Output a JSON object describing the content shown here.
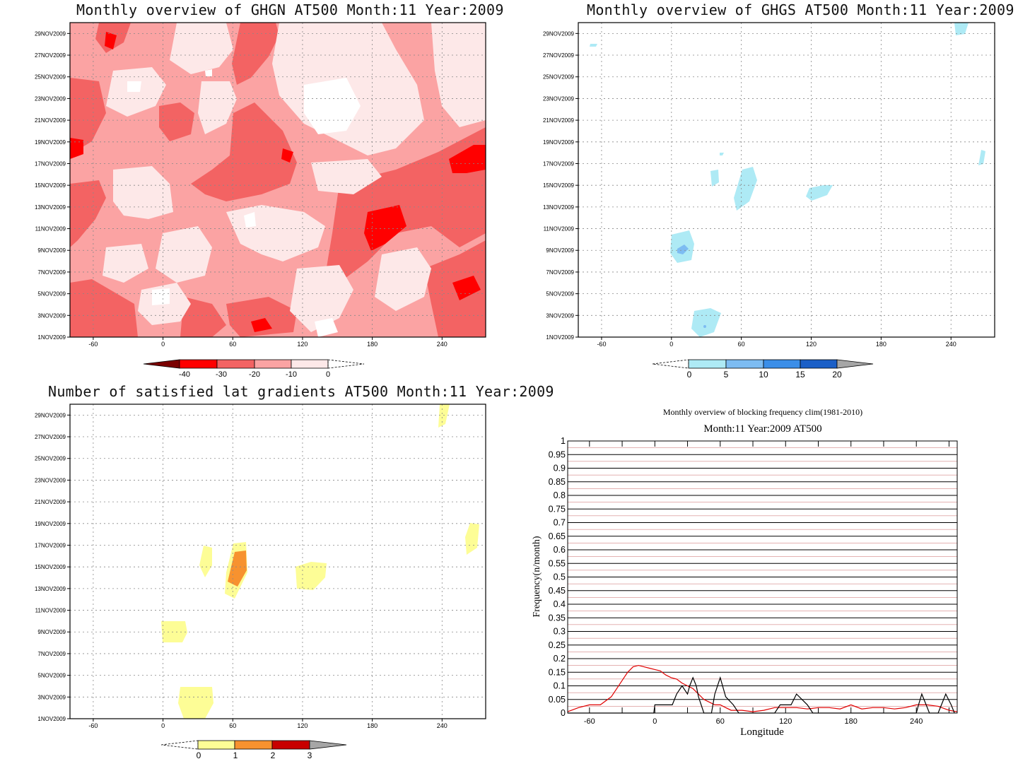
{
  "panels": {
    "ghgn": {
      "title": "Monthly overview of GHGN AT500 Month:11 Year:2009",
      "y_ticks": [
        "1NOV2009",
        "3NOV2009",
        "5NOV2009",
        "7NOV2009",
        "9NOV2009",
        "11NOV2009",
        "13NOV2009",
        "15NOV2009",
        "17NOV2009",
        "19NOV2009",
        "21NOV2009",
        "23NOV2009",
        "25NOV2009",
        "27NOV2009",
        "29NOV2009"
      ],
      "x_ticks": [
        "-60",
        "0",
        "60",
        "120",
        "180",
        "240"
      ],
      "colorbar": {
        "labels": [
          "-40",
          "-30",
          "-20",
          "-10",
          "0"
        ],
        "colors": [
          "#7a0000",
          "#ff0000",
          "#f36363",
          "#fba3a3",
          "#fde8e8"
        ]
      }
    },
    "ghgs": {
      "title": "Monthly overview of GHGS AT500 Month:11 Year:2009",
      "y_ticks": [
        "1NOV2009",
        "3NOV2009",
        "5NOV2009",
        "7NOV2009",
        "9NOV2009",
        "11NOV2009",
        "13NOV2009",
        "15NOV2009",
        "17NOV2009",
        "19NOV2009",
        "21NOV2009",
        "23NOV2009",
        "25NOV2009",
        "27NOV2009",
        "29NOV2009"
      ],
      "x_ticks": [
        "-60",
        "0",
        "60",
        "120",
        "180",
        "240"
      ],
      "colorbar": {
        "labels": [
          "0",
          "5",
          "10",
          "15",
          "20"
        ],
        "colors": [
          "#aeeaf5",
          "#7dbcf2",
          "#3b8ee8",
          "#1b5fc7",
          "#a6a6a6"
        ]
      }
    },
    "lat": {
      "title": "Number of satisfied lat gradients AT500 Month:11 Year:2009",
      "y_ticks": [
        "1NOV2009",
        "3NOV2009",
        "5NOV2009",
        "7NOV2009",
        "9NOV2009",
        "11NOV2009",
        "13NOV2009",
        "15NOV2009",
        "17NOV2009",
        "19NOV2009",
        "21NOV2009",
        "23NOV2009",
        "25NOV2009",
        "27NOV2009",
        "29NOV2009"
      ],
      "x_ticks": [
        "-60",
        "0",
        "60",
        "120",
        "180",
        "240"
      ],
      "colorbar": {
        "labels": [
          "0",
          "1",
          "2",
          "3"
        ],
        "colors": [
          "#fdfd96",
          "#f7922f",
          "#c80000",
          "#a6a6a6"
        ]
      }
    }
  },
  "chart_data": {
    "type": "line",
    "title": "Monthly overview of blocking frequency clim(1981-2010)",
    "subtitle": "Month:11 Year:2009  AT500",
    "xlabel": "Longitude",
    "ylabel": "Frequency(n/month)",
    "x_ticks": [
      "-60",
      "0",
      "60",
      "120",
      "180",
      "240"
    ],
    "y_ticks": [
      "0",
      "0.05",
      "0.1",
      "0.15",
      "0.2",
      "0.25",
      "0.3",
      "0.35",
      "0.4",
      "0.45",
      "0.5",
      "0.55",
      "0.6",
      "0.65",
      "0.7",
      "0.75",
      "0.8",
      "0.85",
      "0.9",
      "0.95",
      "1"
    ],
    "xlim": [
      -80,
      277.5
    ],
    "ylim": [
      0,
      1
    ],
    "grid": true,
    "series": [
      {
        "color": "#e00000",
        "x": [
          -80,
          -70,
          -60,
          -50,
          -40,
          -35,
          -30,
          -25,
          -20,
          -15,
          -10,
          -5,
          0,
          5,
          10,
          15,
          20,
          25,
          30,
          35,
          40,
          45,
          50,
          55,
          60,
          65,
          70,
          80,
          90,
          100,
          110,
          120,
          130,
          140,
          150,
          160,
          170,
          180,
          190,
          200,
          210,
          220,
          230,
          240,
          250,
          260,
          270,
          277.5
        ],
        "values": [
          0.005,
          0.02,
          0.03,
          0.03,
          0.06,
          0.09,
          0.12,
          0.15,
          0.17,
          0.175,
          0.17,
          0.165,
          0.16,
          0.155,
          0.14,
          0.13,
          0.125,
          0.11,
          0.1,
          0.09,
          0.07,
          0.05,
          0.04,
          0.03,
          0.03,
          0.02,
          0.01,
          0.01,
          0.005,
          0.01,
          0.02,
          0.02,
          0.02,
          0.015,
          0.02,
          0.02,
          0.015,
          0.03,
          0.015,
          0.02,
          0.02,
          0.015,
          0.02,
          0.03,
          0.03,
          0.025,
          0.01,
          0.005
        ]
      },
      {
        "color": "#000000",
        "x": [
          -80,
          -1,
          0,
          16,
          20,
          25,
          30,
          32,
          35,
          38,
          40,
          45,
          52,
          55,
          60,
          65,
          72,
          77,
          110,
          115,
          125,
          130,
          140,
          145,
          240,
          242,
          245,
          249,
          252,
          260,
          263,
          267,
          272,
          275
        ],
        "values": [
          0,
          0,
          0.03,
          0.03,
          0.07,
          0.1,
          0.07,
          0.1,
          0.13,
          0.1,
          0.06,
          0,
          0,
          0.07,
          0.13,
          0.06,
          0.03,
          0,
          0,
          0.03,
          0.03,
          0.07,
          0.03,
          0,
          0,
          0.03,
          0.07,
          0.03,
          0,
          0,
          0.03,
          0.07,
          0.03,
          0
        ]
      }
    ]
  }
}
